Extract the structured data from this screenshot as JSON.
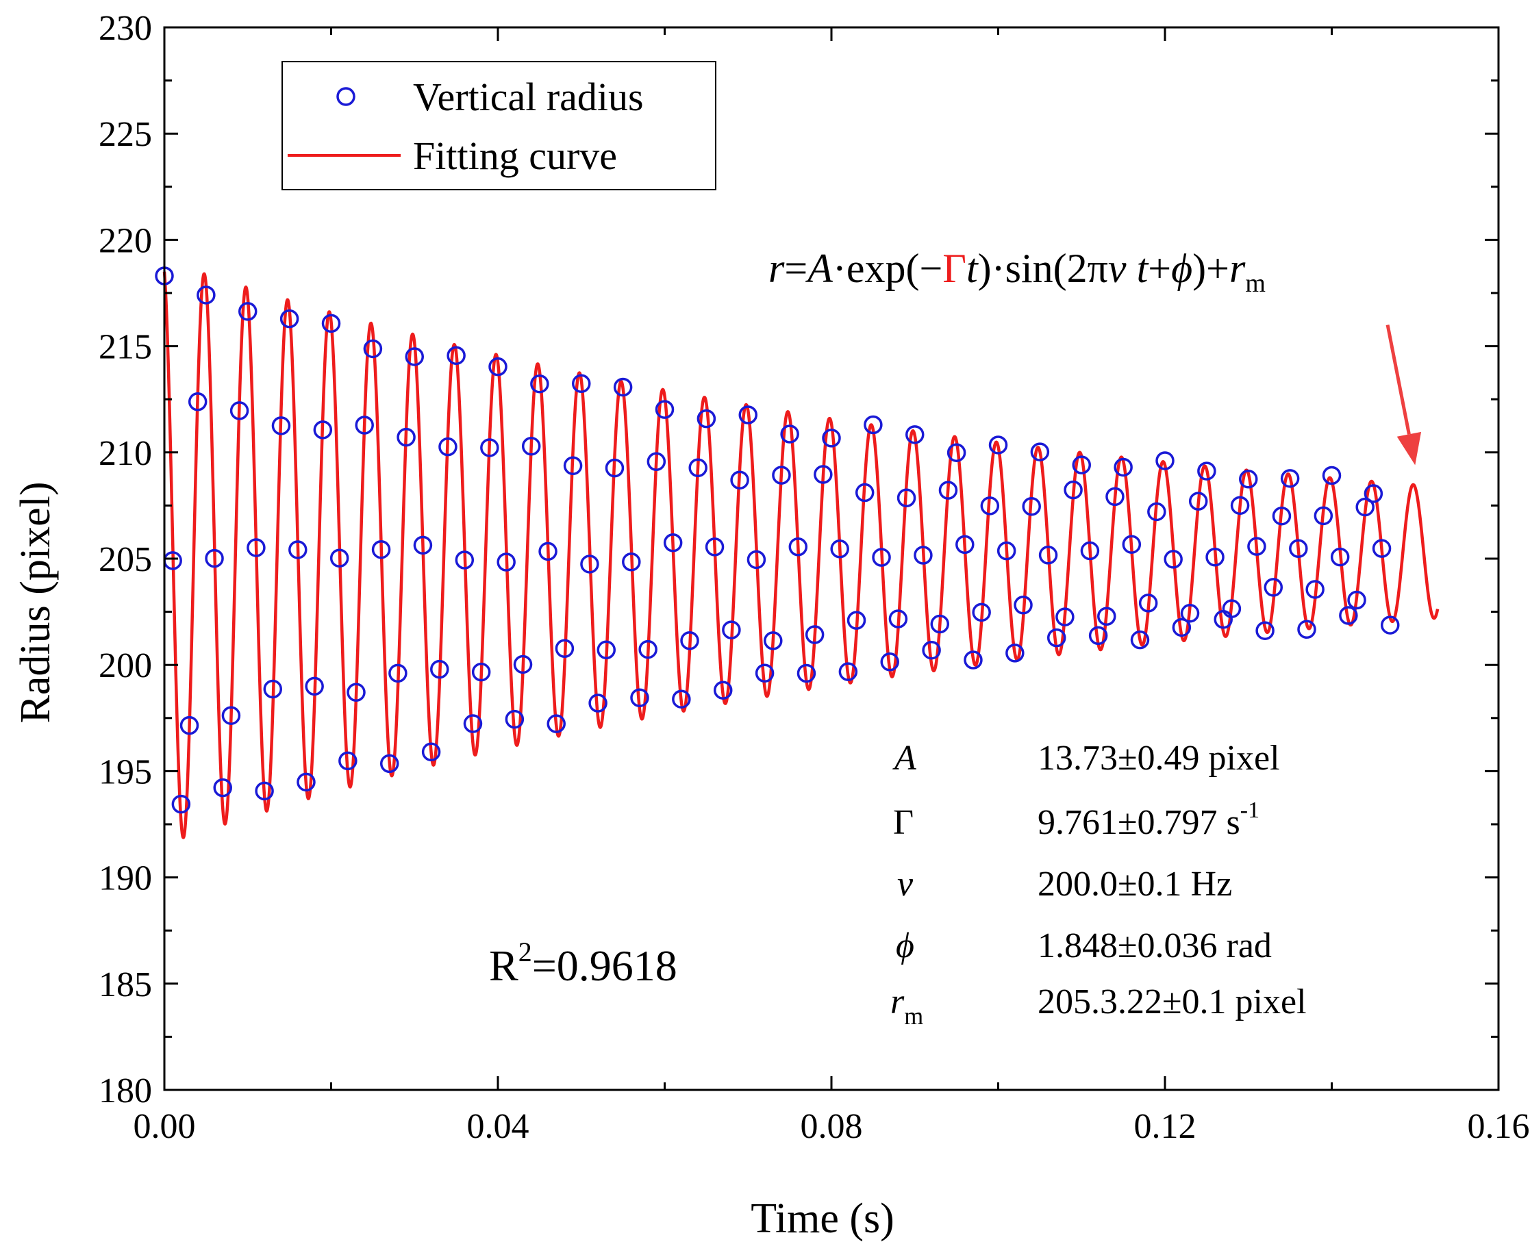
{
  "chart_data": {
    "type": "scatter",
    "title": "",
    "xlabel": "Time (s)",
    "ylabel": "Radius (pixel)",
    "xlim": [
      0.0,
      0.16
    ],
    "ylim": [
      180,
      230
    ],
    "xticks": [
      0.0,
      0.04,
      0.08,
      0.12,
      0.16
    ],
    "xtick_labels": [
      "0.00",
      "0.04",
      "0.08",
      "0.12",
      "0.16"
    ],
    "yticks": [
      180,
      185,
      190,
      195,
      200,
      205,
      210,
      215,
      220,
      225,
      230
    ],
    "ytick_labels": [
      "180",
      "185",
      "190",
      "195",
      "200",
      "205",
      "210",
      "215",
      "220",
      "225",
      "230"
    ],
    "legend": {
      "position": "top-left",
      "entries": [
        {
          "label": "Vertical radius",
          "marker": "circle",
          "color": "#1a1ad6"
        },
        {
          "label": "Fitting curve",
          "marker": "line",
          "color": "#ee1c1c"
        }
      ]
    },
    "series": [
      {
        "name": "Vertical radius",
        "style": "open-circle",
        "color": "#1a1ad6",
        "sample_period_s": 0.001,
        "x_start_s": 0.0,
        "count": 148,
        "data_source_note": "model-sampled",
        "noise_pixel": [
          0.4,
          -0.3,
          0.2,
          -0.5,
          0.3,
          0.1,
          -0.2,
          0.4,
          -0.4,
          0.2,
          -0.1,
          0.3,
          -0.3,
          0.5,
          -0.2,
          0.1,
          0.2,
          -0.4,
          0.3,
          -0.1,
          0.4,
          -0.2,
          0.1,
          -0.3
        ]
      },
      {
        "name": "Fitting curve",
        "style": "line",
        "color": "#ee1c1c",
        "x_range": [
          0.0,
          0.1527
        ],
        "model": {
          "A": 13.73,
          "Gamma": 9.761,
          "nu": 200.0,
          "phi": 1.848,
          "r_m": 205.3
        }
      }
    ],
    "annotations": {
      "equation": {
        "r": "r",
        "eq": "=",
        "A": "A",
        "dot1": "·exp(−",
        "Gamma": "Γ",
        "t1": "t",
        "close1": ")·sin(2π",
        "nu": "ν",
        "t2": " t",
        "plus1": "+",
        "phi": "ϕ",
        "close2": ")+",
        "rm_r": "r",
        "rm_sub": "m"
      },
      "r_squared": {
        "base": "R",
        "sup": "2",
        "rest": "=0.9618"
      },
      "parameters": [
        {
          "symbol": "A",
          "value": "13.73±0.49 pixel",
          "color": "#000000"
        },
        {
          "symbol": "Γ",
          "value": "9.761±0.797 s",
          "value_sup": "-1",
          "color": "#ee1c1c"
        },
        {
          "symbol": "ν",
          "value": "200.0±0.1 Hz",
          "color": "#000000"
        },
        {
          "symbol": "ϕ",
          "value": "1.848±0.036 rad",
          "color": "#000000"
        },
        {
          "symbol": "r",
          "symbol_sub": "m",
          "value": "205.3.22±0.1 pixel",
          "color": "#000000"
        }
      ],
      "arrow": {
        "from_data": [
          0.1467,
          216.0
        ],
        "to_data": [
          0.15,
          209.4
        ],
        "color": "#ee4040"
      }
    }
  }
}
